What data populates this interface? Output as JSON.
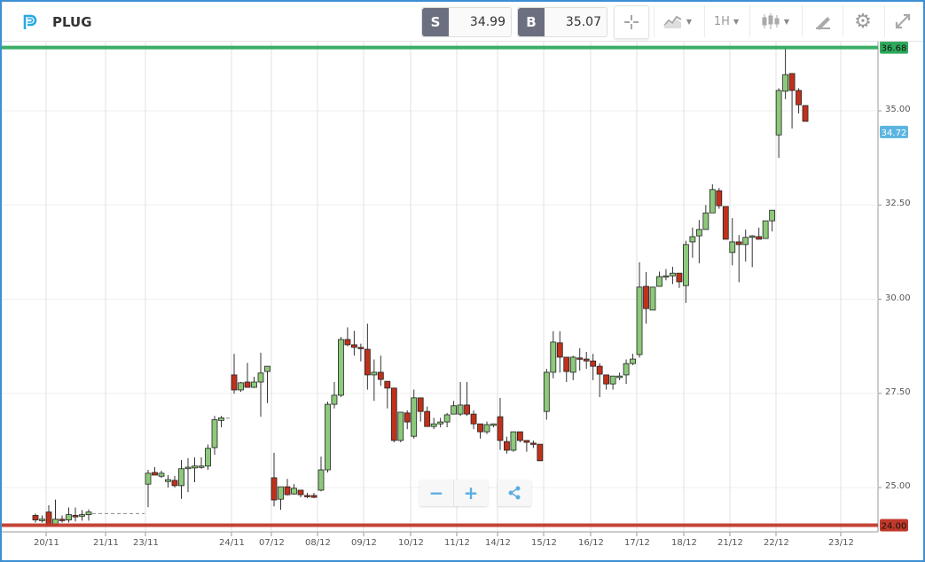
{
  "header": {
    "symbol": "PLUG",
    "sell_label": "S",
    "sell_price": "34.99",
    "buy_label": "B",
    "buy_price": "35.07",
    "timeframe": "1H",
    "icons": [
      "crosshair-icon",
      "chart-type-icon",
      "candlestick-icon",
      "draw-icon",
      "gear-icon",
      "expand-icon"
    ]
  },
  "colors": {
    "frame": "#3d8fd4",
    "up": "#8cc97a",
    "down": "#c0311b",
    "high_line": "#2eaa5c",
    "low_line": "#c0392b",
    "current": "#5bb5e0"
  },
  "chart_data": {
    "type": "candlestick",
    "ylim": [
      23.8,
      37.3
    ],
    "y_ticks": [
      "25.00",
      "27.50",
      "30.00",
      "32.50",
      "35.00"
    ],
    "x_ticks": [
      "20/11",
      "21/11",
      "23/11",
      "24/11",
      "07/12",
      "08/12",
      "09/12",
      "10/12",
      "11/12",
      "14/12",
      "15/12",
      "16/12",
      "17/12",
      "18/12",
      "21/12",
      "22/12",
      "23/12"
    ],
    "grid": true,
    "high_line": {
      "value": 36.68,
      "label": "36.68"
    },
    "low_line": {
      "value": 24.0,
      "label": "24.00"
    },
    "current_price": {
      "value": 34.72,
      "label": "34.72"
    },
    "segments": [
      {
        "candles": [
          [
            24.26,
            24.31,
            24.07,
            24.14
          ],
          [
            24.12,
            24.26,
            24.07,
            24.16
          ],
          [
            24.35,
            24.53,
            24.0,
            24.0
          ],
          [
            24.0,
            24.68,
            24.0,
            24.16
          ],
          [
            24.16,
            24.26,
            24.07,
            24.12
          ],
          [
            24.14,
            24.47,
            24.07,
            24.28
          ],
          [
            24.26,
            24.47,
            24.1,
            24.22
          ],
          [
            24.24,
            24.4,
            24.12,
            24.28
          ],
          [
            24.28,
            24.42,
            24.12,
            24.35
          ]
        ]
      },
      {
        "candles": [
          [
            25.09,
            25.47,
            24.48,
            25.38
          ],
          [
            25.4,
            25.54,
            25.33,
            25.33
          ],
          [
            25.3,
            25.45,
            25.26,
            25.38
          ],
          [
            25.16,
            25.33,
            25.0,
            25.21
          ],
          [
            25.19,
            25.31,
            25.0,
            25.05
          ],
          [
            25.05,
            25.73,
            24.7,
            25.5
          ],
          [
            25.5,
            25.78,
            24.88,
            25.54
          ],
          [
            25.52,
            25.8,
            25.14,
            25.57
          ],
          [
            25.54,
            25.8,
            25.5,
            25.57
          ],
          [
            25.57,
            26.14,
            25.47,
            26.04
          ],
          [
            26.06,
            26.9,
            25.87,
            26.8
          ],
          [
            26.78,
            26.9,
            26.6,
            26.85
          ]
        ]
      },
      {
        "candles": [
          [
            27.99,
            28.55,
            27.49,
            27.59
          ],
          [
            27.59,
            27.8,
            27.54,
            27.78
          ],
          [
            27.8,
            28.31,
            27.66,
            27.66
          ],
          [
            27.66,
            27.94,
            27.64,
            27.8
          ],
          [
            27.8,
            28.58,
            26.88,
            28.04
          ],
          [
            28.08,
            28.22,
            27.24,
            28.22
          ]
        ]
      },
      {
        "candles": [
          [
            25.26,
            25.92,
            24.5,
            24.67
          ],
          [
            24.69,
            25.02,
            24.41,
            25.02
          ],
          [
            25.02,
            25.23,
            24.79,
            24.81
          ],
          [
            24.83,
            25.09,
            24.81,
            24.98
          ],
          [
            24.93,
            24.93,
            24.74,
            24.81
          ],
          [
            24.79,
            24.86,
            24.72,
            24.76
          ],
          [
            24.79,
            24.86,
            24.72,
            24.74
          ]
        ]
      },
      {
        "candles": [
          [
            24.93,
            25.82,
            24.9,
            25.47
          ],
          [
            25.47,
            27.28,
            25.4,
            27.21
          ],
          [
            27.21,
            27.8,
            27.1,
            27.45
          ],
          [
            27.45,
            29.0,
            27.4,
            28.93
          ],
          [
            28.93,
            29.25,
            28.75,
            28.79
          ],
          [
            28.79,
            29.16,
            28.5,
            28.72
          ],
          [
            28.72,
            28.82,
            28.35,
            28.7
          ],
          [
            28.67,
            29.35,
            27.6,
            27.99
          ],
          [
            27.99,
            28.4,
            27.3,
            28.06
          ],
          [
            28.06,
            28.5,
            27.7,
            27.87
          ],
          [
            27.82,
            27.82,
            27.1,
            27.64
          ],
          [
            27.64,
            27.64,
            26.2,
            26.25
          ],
          [
            26.25,
            27.0,
            26.2,
            27.0
          ],
          [
            26.98,
            27.05,
            26.55,
            26.74
          ],
          [
            26.36,
            27.6,
            26.3,
            27.38
          ],
          [
            27.38,
            27.38,
            26.75,
            27.02
          ],
          [
            27.02,
            27.15,
            26.62,
            26.62
          ],
          [
            26.62,
            26.85,
            26.55,
            26.69
          ],
          [
            26.69,
            26.85,
            26.6,
            26.74
          ],
          [
            26.74,
            26.98,
            26.6,
            26.93
          ],
          [
            26.95,
            27.3,
            26.95,
            27.17
          ],
          [
            26.95,
            27.8,
            26.9,
            27.19
          ],
          [
            27.19,
            27.8,
            26.9,
            26.95
          ],
          [
            26.95,
            27.05,
            26.55,
            26.69
          ],
          [
            26.69,
            26.69,
            26.3,
            26.48
          ],
          [
            26.48,
            26.75,
            26.42,
            26.67
          ],
          [
            26.65,
            26.69,
            26.6,
            26.69
          ],
          [
            26.88,
            27.38,
            26.0,
            26.25
          ],
          [
            26.22,
            26.35,
            25.9,
            25.99
          ],
          [
            25.99,
            26.48,
            25.95,
            26.48
          ],
          [
            26.48,
            26.48,
            26.2,
            26.25
          ],
          [
            26.25,
            26.25,
            25.95,
            26.2
          ],
          [
            26.18,
            26.25,
            26.05,
            26.15
          ],
          [
            26.15,
            26.15,
            25.7,
            25.71
          ],
          [
            27.02,
            28.15,
            26.8,
            28.06
          ],
          [
            28.06,
            29.15,
            27.9,
            28.86
          ],
          [
            28.84,
            29.15,
            28.05,
            28.46
          ],
          [
            28.46,
            28.46,
            27.8,
            28.08
          ],
          [
            28.06,
            28.5,
            27.85,
            28.46
          ],
          [
            28.44,
            28.7,
            28.1,
            28.41
          ],
          [
            28.41,
            28.6,
            28.15,
            28.36
          ],
          [
            28.36,
            28.55,
            27.85,
            28.22
          ],
          [
            28.22,
            28.3,
            27.4,
            28.01
          ],
          [
            27.99,
            27.99,
            27.6,
            27.75
          ],
          [
            27.75,
            27.96,
            27.6,
            27.96
          ],
          [
            27.92,
            28.05,
            27.85,
            27.96
          ],
          [
            27.99,
            28.4,
            27.75,
            28.29
          ],
          [
            28.29,
            28.55,
            28.25,
            28.41
          ],
          [
            28.53,
            30.98,
            28.45,
            30.32
          ],
          [
            30.34,
            30.72,
            29.35,
            29.75
          ],
          [
            29.71,
            30.32,
            29.71,
            30.32
          ],
          [
            30.34,
            30.73,
            30.34,
            30.6
          ],
          [
            30.6,
            30.8,
            30.5,
            30.62
          ],
          [
            30.62,
            30.86,
            30.4,
            30.69
          ],
          [
            30.69,
            30.69,
            30.3,
            30.46
          ],
          [
            30.36,
            31.55,
            29.9,
            31.45
          ],
          [
            31.52,
            31.9,
            31.1,
            31.66
          ],
          [
            31.68,
            32.1,
            30.95,
            31.85
          ],
          [
            31.85,
            32.5,
            31.85,
            32.29
          ],
          [
            32.29,
            33.05,
            32.29,
            32.91
          ],
          [
            32.88,
            32.95,
            32.4,
            32.48
          ],
          [
            32.46,
            32.46,
            31.59,
            31.59
          ],
          [
            31.24,
            32.15,
            30.9,
            31.52
          ],
          [
            31.52,
            31.7,
            30.45,
            31.45
          ],
          [
            31.45,
            31.85,
            31.0,
            31.64
          ],
          [
            31.64,
            31.7,
            30.85,
            31.68
          ],
          [
            31.66,
            31.9,
            31.59,
            31.59
          ],
          [
            31.61,
            32.08,
            31.61,
            32.08
          ],
          [
            32.08,
            32.36,
            31.8,
            32.36
          ],
          [
            34.36,
            35.6,
            33.75,
            35.54
          ],
          [
            35.52,
            36.68,
            35.31,
            35.96
          ],
          [
            35.99,
            35.99,
            34.53,
            35.54
          ],
          [
            35.54,
            35.6,
            34.93,
            35.16
          ],
          [
            35.14,
            35.14,
            34.72,
            34.72
          ]
        ]
      }
    ]
  },
  "zoom_controls": {
    "zoom_out": "−",
    "zoom_in": "+",
    "share_icon": "share-icon"
  }
}
